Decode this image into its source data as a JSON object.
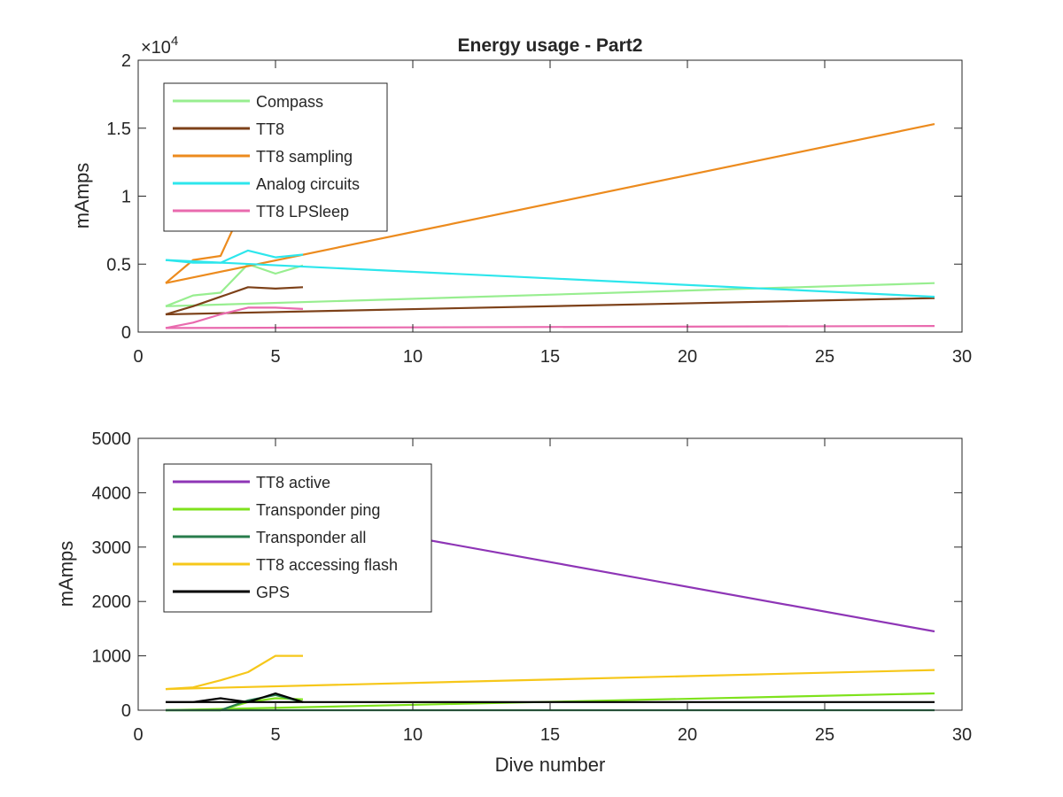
{
  "figure": {
    "title": "Energy usage - Part2"
  },
  "chart_data": [
    {
      "type": "line",
      "title": "Energy usage - Part2",
      "xlabel": "",
      "ylabel": "mAmps",
      "xlim": [
        0,
        30
      ],
      "ylim": [
        0,
        20000
      ],
      "x_ticks": [
        "0",
        "5",
        "10",
        "15",
        "20",
        "25",
        "30"
      ],
      "y_ticks": [
        "0",
        "0.5",
        "1",
        "1.5",
        "2"
      ],
      "y_multiplier": "×10",
      "y_multiplier_exp": "4",
      "grid": false,
      "legend_position": "top-left",
      "series": [
        {
          "name": "Compass",
          "color": "#98ee90",
          "segments": [
            {
              "x": [
                1,
                29
              ],
              "y": [
                1900,
                3600
              ]
            },
            {
              "x": [
                1,
                2,
                3,
                4,
                5,
                6
              ],
              "y": [
                1900,
                2700,
                2900,
                5000,
                4300,
                4900
              ]
            }
          ]
        },
        {
          "name": "TT8",
          "color": "#7d4119",
          "segments": [
            {
              "x": [
                1,
                29
              ],
              "y": [
                1300,
                2500
              ]
            },
            {
              "x": [
                1,
                2,
                3,
                4,
                5,
                6
              ],
              "y": [
                1300,
                1900,
                2600,
                3300,
                3200,
                3300
              ]
            }
          ]
        },
        {
          "name": "TT8 sampling",
          "color": "#ec8b1e",
          "segments": [
            {
              "x": [
                1,
                29
              ],
              "y": [
                3600,
                15300
              ]
            },
            {
              "x": [
                1,
                2,
                3,
                3.5
              ],
              "y": [
                3600,
                5300,
                5600,
                7800
              ]
            }
          ]
        },
        {
          "name": "Analog circuits",
          "color": "#2de6ec",
          "segments": [
            {
              "x": [
                1,
                29
              ],
              "y": [
                5300,
                2600
              ]
            },
            {
              "x": [
                1,
                2,
                3,
                4,
                5,
                6
              ],
              "y": [
                5300,
                5100,
                5100,
                6000,
                5500,
                5700
              ]
            }
          ]
        },
        {
          "name": "TT8 LPSleep",
          "color": "#e96aae",
          "segments": [
            {
              "x": [
                1,
                29
              ],
              "y": [
                300,
                450
              ]
            },
            {
              "x": [
                1,
                2,
                3,
                4,
                5,
                6
              ],
              "y": [
                300,
                700,
                1300,
                1800,
                1800,
                1700
              ]
            }
          ]
        }
      ]
    },
    {
      "type": "line",
      "title": "",
      "xlabel": "Dive number",
      "ylabel": "mAmps",
      "xlim": [
        0,
        30
      ],
      "ylim": [
        0,
        5000
      ],
      "x_ticks": [
        "0",
        "5",
        "10",
        "15",
        "20",
        "25",
        "30"
      ],
      "y_ticks": [
        "0",
        "1000",
        "2000",
        "3000",
        "4000",
        "5000"
      ],
      "grid": false,
      "legend_position": "top-left",
      "series": [
        {
          "name": "TT8 active",
          "color": "#8e35b6",
          "segments": [
            {
              "x": [
                1,
                29
              ],
              "y": [
                4000,
                1450
              ]
            }
          ]
        },
        {
          "name": "Transponder ping",
          "color": "#7ee21c",
          "segments": [
            {
              "x": [
                1,
                29
              ],
              "y": [
                0,
                310
              ]
            },
            {
              "x": [
                1,
                3,
                4,
                5,
                6
              ],
              "y": [
                0,
                0,
                150,
                220,
                200
              ]
            }
          ]
        },
        {
          "name": "Transponder all",
          "color": "#287c4c",
          "segments": [
            {
              "x": [
                1,
                29
              ],
              "y": [
                0,
                0
              ]
            },
            {
              "x": [
                1,
                3,
                4,
                5,
                6
              ],
              "y": [
                0,
                0,
                180,
                280,
                150
              ]
            }
          ]
        },
        {
          "name": "TT8 accessing flash",
          "color": "#f6c71a",
          "segments": [
            {
              "x": [
                1,
                29
              ],
              "y": [
                390,
                740
              ]
            },
            {
              "x": [
                1,
                2,
                3,
                4,
                5,
                6
              ],
              "y": [
                390,
                420,
                550,
                700,
                1000,
                1000
              ]
            }
          ]
        },
        {
          "name": "GPS",
          "color": "#000000",
          "segments": [
            {
              "x": [
                1,
                29
              ],
              "y": [
                150,
                150
              ]
            },
            {
              "x": [
                1,
                2,
                3,
                4,
                5,
                6
              ],
              "y": [
                150,
                150,
                220,
                150,
                310,
                150
              ]
            }
          ]
        }
      ]
    }
  ]
}
